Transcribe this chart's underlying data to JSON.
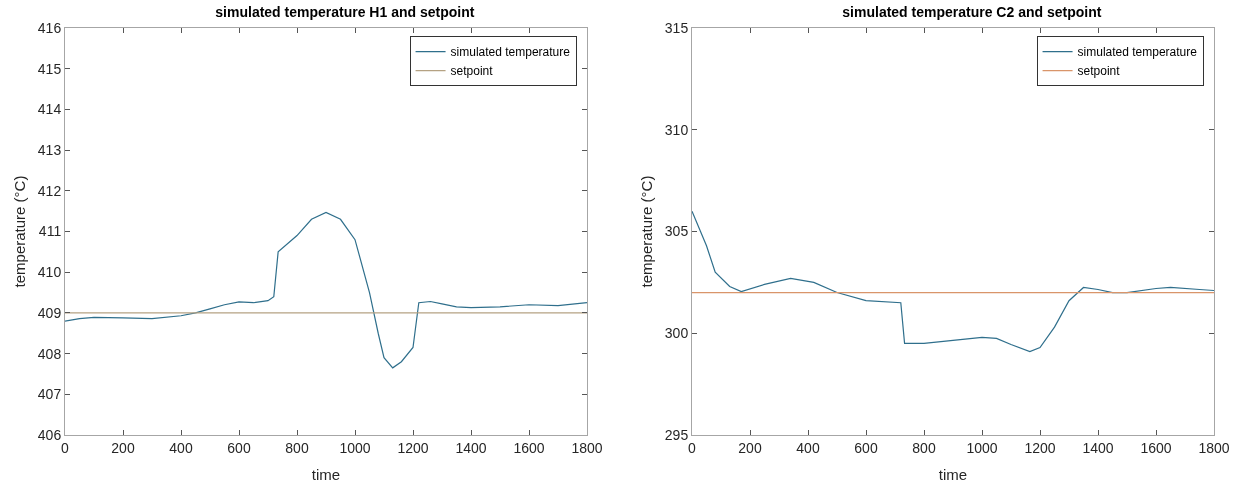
{
  "chart_data": [
    {
      "type": "line",
      "title": "simulated temperature H1 and setpoint",
      "xlabel": "time",
      "ylabel": "temperature (°C)",
      "xlim": [
        0,
        1800
      ],
      "xticks": [
        0,
        200,
        400,
        600,
        800,
        1000,
        1200,
        1400,
        1600,
        1800
      ],
      "ylim": [
        406,
        416
      ],
      "yticks": [
        406,
        407,
        408,
        409,
        410,
        411,
        412,
        413,
        414,
        415,
        416
      ],
      "grid": false,
      "legend": "top right",
      "series": [
        {
          "name": "simulated temperature",
          "color": "#2f6f8c",
          "x": [
            0,
            50,
            100,
            200,
            300,
            400,
            450,
            500,
            550,
            600,
            650,
            700,
            720,
            735,
            800,
            850,
            900,
            950,
            1000,
            1050,
            1080,
            1100,
            1130,
            1160,
            1200,
            1220,
            1260,
            1300,
            1350,
            1400,
            1500,
            1600,
            1700,
            1800
          ],
          "values": [
            408.8,
            408.86,
            408.89,
            408.88,
            408.86,
            408.93,
            409.0,
            409.1,
            409.2,
            409.27,
            409.25,
            409.3,
            409.4,
            410.5,
            410.9,
            411.3,
            411.47,
            411.3,
            410.8,
            409.5,
            408.5,
            407.9,
            407.65,
            407.8,
            408.15,
            409.25,
            409.28,
            409.22,
            409.15,
            409.13,
            409.15,
            409.2,
            409.18,
            409.25
          ]
        },
        {
          "name": "setpoint",
          "color": "#b5a283",
          "x": [
            0,
            1800
          ],
          "values": [
            409,
            409
          ]
        }
      ]
    },
    {
      "type": "line",
      "title": "simulated temperature C2 and setpoint",
      "xlabel": "time",
      "ylabel": "temperature (°C)",
      "xlim": [
        0,
        1800
      ],
      "xticks": [
        0,
        200,
        400,
        600,
        800,
        1000,
        1200,
        1400,
        1600,
        1800
      ],
      "ylim": [
        295,
        315
      ],
      "yticks": [
        295,
        300,
        305,
        310,
        315
      ],
      "grid": false,
      "legend": "top right",
      "series": [
        {
          "name": "simulated temperature",
          "color": "#2f6f8c",
          "x": [
            0,
            50,
            80,
            130,
            170,
            250,
            340,
            420,
            500,
            600,
            720,
            733,
            800,
            900,
            1000,
            1050,
            1100,
            1165,
            1200,
            1250,
            1300,
            1350,
            1400,
            1450,
            1500,
            1600,
            1650,
            1750,
            1800
          ],
          "values": [
            306,
            304.3,
            303,
            302.3,
            302.05,
            302.4,
            302.7,
            302.5,
            302.0,
            301.6,
            301.5,
            299.5,
            299.5,
            299.65,
            299.8,
            299.75,
            299.45,
            299.1,
            299.3,
            300.3,
            301.6,
            302.25,
            302.15,
            302.0,
            302.0,
            302.2,
            302.25,
            302.15,
            302.1
          ]
        },
        {
          "name": "setpoint",
          "color": "#d9956a",
          "x": [
            0,
            1800
          ],
          "values": [
            302,
            302
          ]
        }
      ]
    }
  ]
}
